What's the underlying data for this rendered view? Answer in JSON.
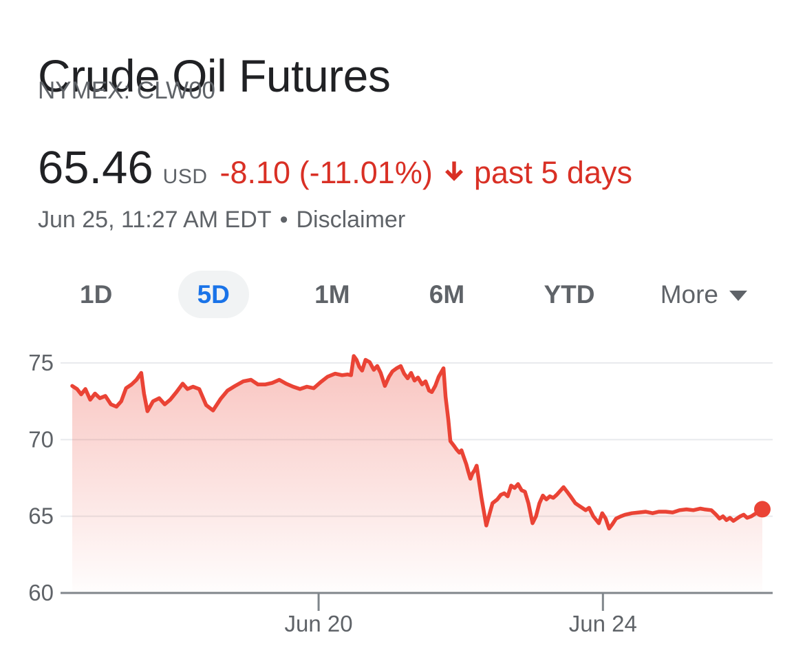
{
  "header": {
    "title": "Crude Oil Futures",
    "exchange": "NYMEX: CLW00"
  },
  "quote": {
    "price": "65.46",
    "currency": "USD",
    "change": "-8.10 (-11.01%)",
    "period_note": "past 5 days",
    "timestamp": "Jun 25, 11:27 AM EDT",
    "separator": "•",
    "disclaimer": "Disclaimer",
    "change_color": "#d93025",
    "direction": "down"
  },
  "range_tabs": {
    "items": [
      {
        "label": "1D",
        "selected": false
      },
      {
        "label": "5D",
        "selected": true
      },
      {
        "label": "1M",
        "selected": false
      },
      {
        "label": "6M",
        "selected": false
      },
      {
        "label": "YTD",
        "selected": false
      },
      {
        "label": "More",
        "selected": false,
        "has_dropdown": true
      }
    ],
    "selected_color": "#1a73e8",
    "selected_bg": "#f1f3f4"
  },
  "chart_data": {
    "type": "area",
    "title": "Crude Oil Futures price, past 5 days",
    "xlabel": "",
    "ylabel": "",
    "ylim": [
      60,
      75.8
    ],
    "yticks": [
      60,
      65,
      70,
      75
    ],
    "xticks": [
      {
        "label": "Jun 20",
        "f": 0.357
      },
      {
        "label": "Jun 24",
        "f": 0.769
      }
    ],
    "grid": true,
    "legend": "none",
    "line_color": "#ea4335",
    "fill_color": "#ea4335",
    "fill_opacity_top": 0.32,
    "axis_color": "#80868b",
    "grid_color": "#e8eaed",
    "label_color": "#5f6368",
    "last_value": 65.46,
    "series": [
      {
        "name": "NYMEX: CLW00",
        "points": [
          [
            0.0,
            73.5
          ],
          [
            0.007,
            73.3
          ],
          [
            0.013,
            72.95
          ],
          [
            0.019,
            73.3
          ],
          [
            0.026,
            72.6
          ],
          [
            0.033,
            73.0
          ],
          [
            0.04,
            72.7
          ],
          [
            0.048,
            72.85
          ],
          [
            0.056,
            72.3
          ],
          [
            0.064,
            72.15
          ],
          [
            0.071,
            72.5
          ],
          [
            0.078,
            73.35
          ],
          [
            0.086,
            73.6
          ],
          [
            0.093,
            73.9
          ],
          [
            0.1,
            74.35
          ],
          [
            0.104,
            73.0
          ],
          [
            0.109,
            71.85
          ],
          [
            0.117,
            72.5
          ],
          [
            0.126,
            72.7
          ],
          [
            0.134,
            72.3
          ],
          [
            0.142,
            72.6
          ],
          [
            0.151,
            73.1
          ],
          [
            0.16,
            73.65
          ],
          [
            0.167,
            73.3
          ],
          [
            0.175,
            73.45
          ],
          [
            0.184,
            73.3
          ],
          [
            0.194,
            72.25
          ],
          [
            0.204,
            71.9
          ],
          [
            0.215,
            72.65
          ],
          [
            0.225,
            73.2
          ],
          [
            0.236,
            73.5
          ],
          [
            0.248,
            73.8
          ],
          [
            0.259,
            73.9
          ],
          [
            0.269,
            73.6
          ],
          [
            0.28,
            73.6
          ],
          [
            0.29,
            73.7
          ],
          [
            0.3,
            73.9
          ],
          [
            0.31,
            73.65
          ],
          [
            0.32,
            73.45
          ],
          [
            0.33,
            73.3
          ],
          [
            0.34,
            73.45
          ],
          [
            0.35,
            73.35
          ],
          [
            0.36,
            73.75
          ],
          [
            0.37,
            74.1
          ],
          [
            0.381,
            74.3
          ],
          [
            0.391,
            74.2
          ],
          [
            0.399,
            74.25
          ],
          [
            0.404,
            74.2
          ],
          [
            0.408,
            75.45
          ],
          [
            0.412,
            75.2
          ],
          [
            0.416,
            74.75
          ],
          [
            0.42,
            74.5
          ],
          [
            0.425,
            75.2
          ],
          [
            0.431,
            75.05
          ],
          [
            0.437,
            74.55
          ],
          [
            0.442,
            74.8
          ],
          [
            0.447,
            74.35
          ],
          [
            0.453,
            73.5
          ],
          [
            0.459,
            74.1
          ],
          [
            0.464,
            74.45
          ],
          [
            0.47,
            74.65
          ],
          [
            0.476,
            74.8
          ],
          [
            0.481,
            74.3
          ],
          [
            0.486,
            74.0
          ],
          [
            0.491,
            74.35
          ],
          [
            0.496,
            73.85
          ],
          [
            0.501,
            74.05
          ],
          [
            0.507,
            73.6
          ],
          [
            0.512,
            73.8
          ],
          [
            0.517,
            73.2
          ],
          [
            0.521,
            73.1
          ],
          [
            0.526,
            73.5
          ],
          [
            0.531,
            74.1
          ],
          [
            0.538,
            74.65
          ],
          [
            0.541,
            72.8
          ],
          [
            0.545,
            71.3
          ],
          [
            0.548,
            69.9
          ],
          [
            0.553,
            69.6
          ],
          [
            0.557,
            69.35
          ],
          [
            0.561,
            69.15
          ],
          [
            0.564,
            69.3
          ],
          [
            0.567,
            68.9
          ],
          [
            0.571,
            68.4
          ],
          [
            0.574,
            67.9
          ],
          [
            0.577,
            67.45
          ],
          [
            0.58,
            67.8
          ],
          [
            0.583,
            68.0
          ],
          [
            0.586,
            68.3
          ],
          [
            0.593,
            66.2
          ],
          [
            0.6,
            64.4
          ],
          [
            0.609,
            65.85
          ],
          [
            0.616,
            66.1
          ],
          [
            0.621,
            66.4
          ],
          [
            0.626,
            66.5
          ],
          [
            0.631,
            66.3
          ],
          [
            0.636,
            67.0
          ],
          [
            0.641,
            66.85
          ],
          [
            0.646,
            67.1
          ],
          [
            0.651,
            66.7
          ],
          [
            0.656,
            66.6
          ],
          [
            0.661,
            65.85
          ],
          [
            0.667,
            64.55
          ],
          [
            0.672,
            65.0
          ],
          [
            0.677,
            65.85
          ],
          [
            0.682,
            66.35
          ],
          [
            0.687,
            66.1
          ],
          [
            0.692,
            66.3
          ],
          [
            0.697,
            66.2
          ],
          [
            0.702,
            66.4
          ],
          [
            0.707,
            66.65
          ],
          [
            0.712,
            66.9
          ],
          [
            0.717,
            66.6
          ],
          [
            0.722,
            66.3
          ],
          [
            0.729,
            65.85
          ],
          [
            0.734,
            65.7
          ],
          [
            0.739,
            65.55
          ],
          [
            0.744,
            65.4
          ],
          [
            0.749,
            65.55
          ],
          [
            0.755,
            65.0
          ],
          [
            0.763,
            64.55
          ],
          [
            0.768,
            65.2
          ],
          [
            0.773,
            64.85
          ],
          [
            0.778,
            64.2
          ],
          [
            0.783,
            64.5
          ],
          [
            0.788,
            64.85
          ],
          [
            0.795,
            65.0
          ],
          [
            0.801,
            65.1
          ],
          [
            0.811,
            65.2
          ],
          [
            0.821,
            65.25
          ],
          [
            0.831,
            65.3
          ],
          [
            0.841,
            65.2
          ],
          [
            0.85,
            65.3
          ],
          [
            0.86,
            65.3
          ],
          [
            0.87,
            65.25
          ],
          [
            0.88,
            65.4
          ],
          [
            0.89,
            65.45
          ],
          [
            0.9,
            65.4
          ],
          [
            0.91,
            65.5
          ],
          [
            0.916,
            65.45
          ],
          [
            0.926,
            65.4
          ],
          [
            0.933,
            65.1
          ],
          [
            0.938,
            64.85
          ],
          [
            0.943,
            65.0
          ],
          [
            0.948,
            64.75
          ],
          [
            0.953,
            64.9
          ],
          [
            0.958,
            64.7
          ],
          [
            0.963,
            64.85
          ],
          [
            0.968,
            65.0
          ],
          [
            0.973,
            65.1
          ],
          [
            0.978,
            64.9
          ],
          [
            0.984,
            65.0
          ],
          [
            0.991,
            65.2
          ],
          [
            1.0,
            65.46
          ]
        ]
      }
    ]
  }
}
